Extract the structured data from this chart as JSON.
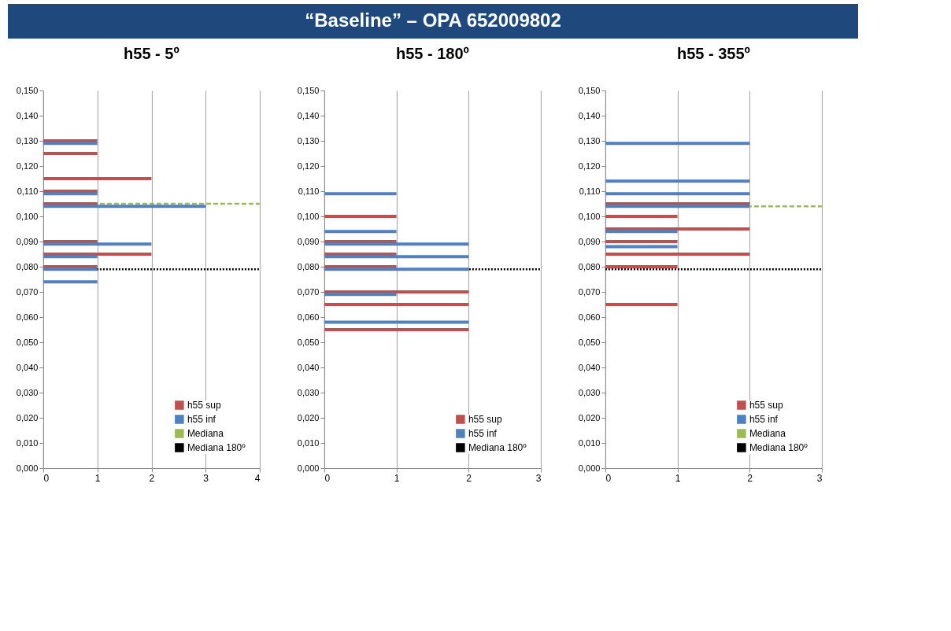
{
  "chart_data": [
    {
      "type": "other",
      "title": "“Baseline” – OPA 652009802"
    },
    {
      "type": "bar",
      "orientation": "horizontal",
      "title": "h55 - 5º",
      "xlim": [
        0,
        4
      ],
      "xticks": [
        0,
        1,
        2,
        3,
        4
      ],
      "ylim": [
        0,
        0.15
      ],
      "yticks": [
        {
          "value": 0,
          "label": "0,000"
        },
        {
          "value": 0.01,
          "label": "0,010"
        },
        {
          "value": 0.02,
          "label": "0,020"
        },
        {
          "value": 0.03,
          "label": "0,030"
        },
        {
          "value": 0.04,
          "label": "0,040"
        },
        {
          "value": 0.05,
          "label": "0,050"
        },
        {
          "value": 0.06,
          "label": "0,060"
        },
        {
          "value": 0.07,
          "label": "0,070"
        },
        {
          "value": 0.08,
          "label": "0,080"
        },
        {
          "value": 0.09,
          "label": "0,090"
        },
        {
          "value": 0.1,
          "label": "0,100"
        },
        {
          "value": 0.11,
          "label": "0,110"
        },
        {
          "value": 0.12,
          "label": "0,120"
        },
        {
          "value": 0.13,
          "label": "0,130"
        },
        {
          "value": 0.14,
          "label": "0,140"
        },
        {
          "value": 0.15,
          "label": "0,150"
        }
      ],
      "grid": "x",
      "legend": "bottom right",
      "series": [
        {
          "name": "h55 sup",
          "color": "#c0504d",
          "x": [
            0.13,
            0.125,
            0.115,
            0.11,
            0.105,
            0.09,
            0.085,
            0.08
          ],
          "values": [
            1,
            1,
            2,
            1,
            1,
            1,
            2,
            1
          ]
        },
        {
          "name": "h55 inf",
          "color": "#4f81bd",
          "x": [
            0.129,
            0.109,
            0.104,
            0.089,
            0.084,
            0.079,
            0.074
          ],
          "values": [
            1,
            1,
            3,
            2,
            1,
            1,
            1
          ]
        }
      ],
      "ref_lines": [
        {
          "axis": "y",
          "value": 0.105,
          "label": "Mediana",
          "color": "#9bbb59",
          "line_style": "dashed"
        },
        {
          "axis": "y",
          "value": 0.079,
          "label": "Mediana 180º",
          "color": "#000000",
          "line_style": "dotted"
        }
      ]
    },
    {
      "type": "bar",
      "orientation": "horizontal",
      "title": "h55 - 180º",
      "xlim": [
        0,
        3
      ],
      "xticks": [
        0,
        1,
        2,
        3
      ],
      "ylim": [
        0,
        0.15
      ],
      "yticks": [
        {
          "value": 0,
          "label": "0,000"
        },
        {
          "value": 0.01,
          "label": "0,010"
        },
        {
          "value": 0.02,
          "label": "0,020"
        },
        {
          "value": 0.03,
          "label": "0,030"
        },
        {
          "value": 0.04,
          "label": "0,040"
        },
        {
          "value": 0.05,
          "label": "0,050"
        },
        {
          "value": 0.06,
          "label": "0,060"
        },
        {
          "value": 0.07,
          "label": "0,070"
        },
        {
          "value": 0.08,
          "label": "0,080"
        },
        {
          "value": 0.09,
          "label": "0,090"
        },
        {
          "value": 0.1,
          "label": "0,100"
        },
        {
          "value": 0.11,
          "label": "0,110"
        },
        {
          "value": 0.12,
          "label": "0,120"
        },
        {
          "value": 0.13,
          "label": "0,130"
        },
        {
          "value": 0.14,
          "label": "0,140"
        },
        {
          "value": 0.15,
          "label": "0,150"
        }
      ],
      "grid": "x",
      "legend": "bottom right",
      "series": [
        {
          "name": "h55 sup",
          "color": "#c0504d",
          "x": [
            0.1,
            0.09,
            0.085,
            0.08,
            0.07,
            0.065,
            0.055
          ],
          "values": [
            1,
            1,
            1,
            1,
            2,
            2,
            2
          ]
        },
        {
          "name": "h55 inf",
          "color": "#4f81bd",
          "x": [
            0.109,
            0.094,
            0.089,
            0.084,
            0.079,
            0.069,
            0.058
          ],
          "values": [
            1,
            1,
            2,
            2,
            2,
            1,
            2
          ]
        }
      ],
      "ref_lines": [
        {
          "axis": "y",
          "value": 0.079,
          "label": "Mediana 180º",
          "color": "#000000",
          "line_style": "dotted"
        }
      ]
    },
    {
      "type": "bar",
      "orientation": "horizontal",
      "title": "h55 - 355º",
      "xlim": [
        0,
        3
      ],
      "xticks": [
        0,
        1,
        2,
        3
      ],
      "ylim": [
        0,
        0.15
      ],
      "yticks": [
        {
          "value": 0,
          "label": "0,000"
        },
        {
          "value": 0.01,
          "label": "0,010"
        },
        {
          "value": 0.02,
          "label": "0,020"
        },
        {
          "value": 0.03,
          "label": "0,030"
        },
        {
          "value": 0.04,
          "label": "0,040"
        },
        {
          "value": 0.05,
          "label": "0,050"
        },
        {
          "value": 0.06,
          "label": "0,060"
        },
        {
          "value": 0.07,
          "label": "0,070"
        },
        {
          "value": 0.08,
          "label": "0,080"
        },
        {
          "value": 0.09,
          "label": "0,090"
        },
        {
          "value": 0.1,
          "label": "0,100"
        },
        {
          "value": 0.11,
          "label": "0,110"
        },
        {
          "value": 0.12,
          "label": "0,120"
        },
        {
          "value": 0.13,
          "label": "0,130"
        },
        {
          "value": 0.14,
          "label": "0,140"
        },
        {
          "value": 0.15,
          "label": "0,150"
        }
      ],
      "grid": "x",
      "legend": "bottom right",
      "series": [
        {
          "name": "h55 sup",
          "color": "#c0504d",
          "x": [
            0.105,
            0.1,
            0.095,
            0.09,
            0.085,
            0.08,
            0.065
          ],
          "values": [
            2,
            1,
            2,
            1,
            2,
            1,
            1
          ]
        },
        {
          "name": "h55 inf",
          "color": "#4f81bd",
          "x": [
            0.129,
            0.114,
            0.109,
            0.104,
            0.094,
            0.088
          ],
          "values": [
            2,
            2,
            2,
            2,
            1,
            1
          ]
        }
      ],
      "ref_lines": [
        {
          "axis": "y",
          "value": 0.104,
          "label": "Mediana",
          "color": "#9bbb59",
          "line_style": "dashed"
        },
        {
          "axis": "y",
          "value": 0.079,
          "label": "Mediana 180º",
          "color": "#000000",
          "line_style": "dotted"
        }
      ]
    }
  ]
}
